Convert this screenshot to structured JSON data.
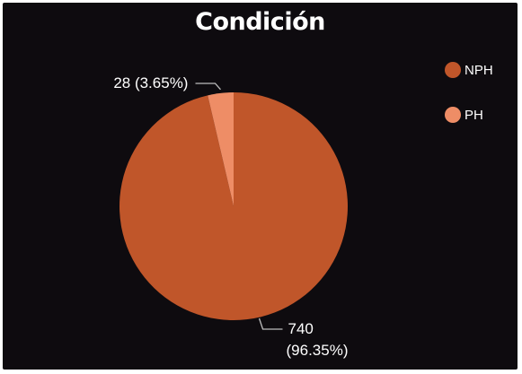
{
  "chart_data": {
    "type": "pie",
    "title": "Condición",
    "categories": [
      "NPH",
      "PH"
    ],
    "values": [
      740,
      28
    ],
    "percentages": [
      "96.35%",
      "3.65%"
    ],
    "colors": [
      "#c0562a",
      "#ee8d66"
    ],
    "legend_position": "top-right",
    "data_labels": [
      {
        "line1": "740",
        "line2": "(96.35%)"
      },
      {
        "line1": "28 (3.65%)",
        "line2": ""
      }
    ]
  }
}
